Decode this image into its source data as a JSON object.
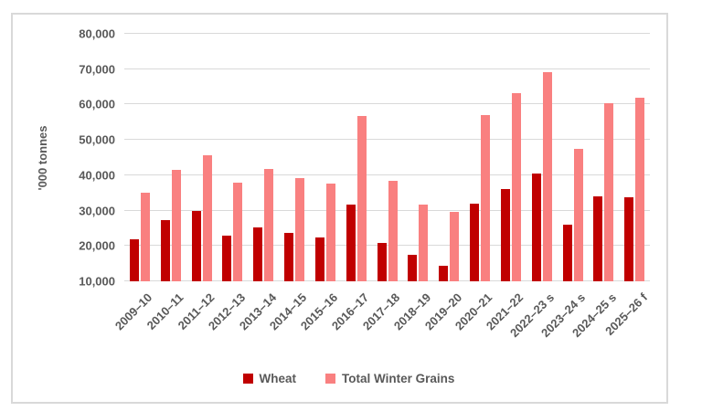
{
  "chart_data": {
    "type": "bar",
    "title": "",
    "xlabel": "",
    "ylabel": "'000 tonnes",
    "ylim": [
      10000,
      80000
    ],
    "grid": true,
    "legend_position": "bottom",
    "yticks": [
      10000,
      20000,
      30000,
      40000,
      50000,
      60000,
      70000,
      80000
    ],
    "ytick_labels": [
      "10,000",
      "20,000",
      "30,000",
      "40,000",
      "50,000",
      "60,000",
      "70,000",
      "80,000"
    ],
    "categories": [
      "2009–10",
      "2010–11",
      "2011–12",
      "2012–13",
      "2013–14",
      "2014–15",
      "2015–16",
      "2016–17",
      "2017–18",
      "2018–19",
      "2019–20",
      "2020–21",
      "2021–22",
      "2022–23 s",
      "2023–24 s",
      "2024–25 s",
      "2025–26 f"
    ],
    "series": [
      {
        "name": "Wheat",
        "color": "#C00000",
        "values": [
          21800,
          27400,
          29900,
          22900,
          25300,
          23700,
          22300,
          31800,
          20900,
          17600,
          14400,
          31900,
          36200,
          40500,
          26100,
          34100,
          33800
        ]
      },
      {
        "name": "Total Winter Grains",
        "color": "#F98080",
        "values": [
          35100,
          41600,
          45600,
          38000,
          41900,
          39200,
          37700,
          56700,
          38400,
          31800,
          29700,
          57000,
          63300,
          69200,
          47400,
          60400,
          62000
        ]
      }
    ]
  },
  "colors": {
    "grid": "#D9D9D9",
    "frame_border": "#D9D9D9",
    "text": "#595959",
    "background": "#FFFFFF"
  }
}
